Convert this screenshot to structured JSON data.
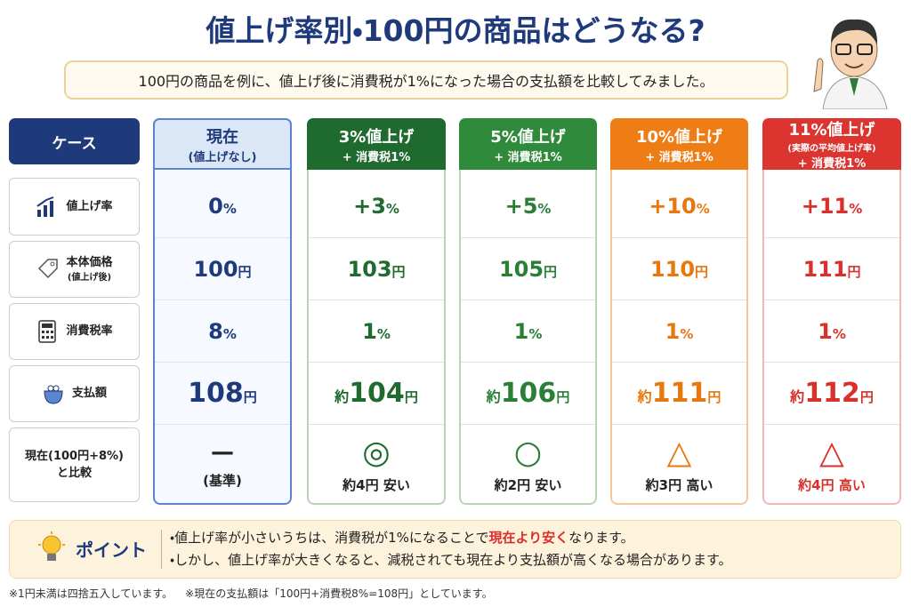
{
  "header": {
    "title": "値上げ率別・100円の商品はどうなる?",
    "subtitle": "100円の商品を例に、値上げ後に消費税が1%になった場合の支払額を比較してみました。"
  },
  "table": {
    "columns": [
      {
        "title": "ケース"
      },
      {
        "title": "現在",
        "subtitle": "(値上げなし)"
      },
      {
        "title": "3%値上げ",
        "subtitle": "+ 消費税1%"
      },
      {
        "title": "5%値上げ",
        "subtitle": "+ 消費税1%"
      },
      {
        "title": "10%値上げ",
        "subtitle": "+ 消費税1%"
      },
      {
        "title": "11%値上げ",
        "note": "(実際の平均値上げ率)",
        "subtitle": "+ 消費税1%"
      }
    ],
    "rows": [
      {
        "label": "値上げ率",
        "cells": [
          {
            "main": "0",
            "unit": "%"
          },
          {
            "main": "+3",
            "unit": "%"
          },
          {
            "main": "+5",
            "unit": "%"
          },
          {
            "main": "+10",
            "unit": "%"
          },
          {
            "main": "+11",
            "unit": "%"
          }
        ]
      },
      {
        "label": "本体価格",
        "sublabel": "(値上げ後)",
        "cells": [
          {
            "main": "100",
            "unit": "円"
          },
          {
            "main": "103",
            "unit": "円"
          },
          {
            "main": "105",
            "unit": "円"
          },
          {
            "main": "110",
            "unit": "円"
          },
          {
            "main": "111",
            "unit": "円"
          }
        ]
      },
      {
        "label": "消費税率",
        "cells": [
          {
            "main": "8",
            "unit": "%"
          },
          {
            "main": "1",
            "unit": "%"
          },
          {
            "main": "1",
            "unit": "%"
          },
          {
            "main": "1",
            "unit": "%"
          },
          {
            "main": "1",
            "unit": "%"
          }
        ]
      },
      {
        "label": "支払額",
        "cells": [
          {
            "main": "108",
            "unit": "円"
          },
          {
            "prefix": "約",
            "main": "104",
            "unit": "円"
          },
          {
            "prefix": "約",
            "main": "106",
            "unit": "円"
          },
          {
            "prefix": "約",
            "main": "111",
            "unit": "円"
          },
          {
            "prefix": "約",
            "main": "112",
            "unit": "円"
          }
        ]
      },
      {
        "label": "現在(100円+8%)",
        "sublabel": "と比較",
        "cells": [
          {
            "main": "—",
            "text": "(基準)"
          },
          {
            "main": "◎",
            "text": "約4円 安い"
          },
          {
            "main": "○",
            "text": "約2円 安い"
          },
          {
            "main": "△",
            "text": "約3円 高い"
          },
          {
            "main": "△",
            "text": "約4円 高い"
          }
        ]
      }
    ]
  },
  "point": {
    "title": "ポイント",
    "bullets": [
      [
        "・値上げ率が小さいうちは、消費税が1%になることで",
        "現在より安く",
        "なります。"
      ],
      [
        "・しかし、値上げ率が大きくなると、減税されても現在より支払額が高くなる場合があります。"
      ]
    ]
  },
  "footnotes": [
    "※1円未満は四捨五入しています。",
    "※現在の支払額は「100円+消費税8%=108円」としています。"
  ]
}
